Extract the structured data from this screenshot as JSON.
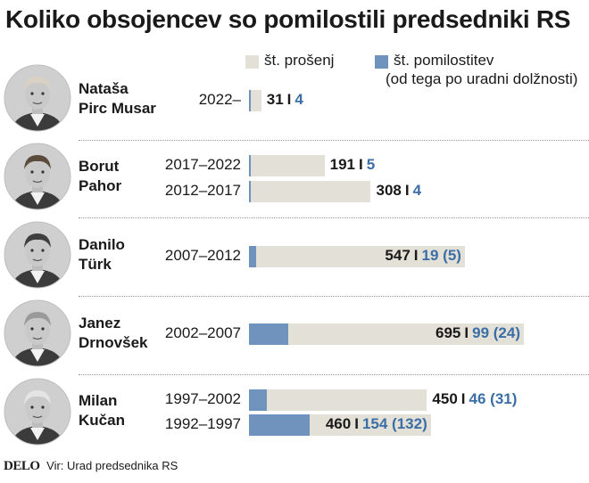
{
  "title": "Koliko obsojencev so pomilostili predsedniki RS",
  "legend": {
    "requests_label": "št. prošenj",
    "pardons_label": "št. pomilostitev",
    "pardons_sublabel": "(od tega po uradni dolžnosti)"
  },
  "colors": {
    "requests": "#e3e0d8",
    "pardons": "#6f93bd",
    "value_blue": "#3a6ea5"
  },
  "chart_data": {
    "type": "bar",
    "orientation": "horizontal",
    "xlim": [
      0,
      695
    ],
    "groups": [
      {
        "name_line1": "Nataša",
        "name_line2": "Pirc Musar",
        "terms": [
          {
            "period": "2022–",
            "requests": 31,
            "pardons": 4,
            "ex_officio": null
          }
        ]
      },
      {
        "name_line1": "Borut",
        "name_line2": "Pahor",
        "terms": [
          {
            "period": "2017–2022",
            "requests": 191,
            "pardons": 5,
            "ex_officio": null
          },
          {
            "period": "2012–2017",
            "requests": 308,
            "pardons": 4,
            "ex_officio": null
          }
        ]
      },
      {
        "name_line1": "Danilo",
        "name_line2": "Türk",
        "terms": [
          {
            "period": "2007–2012",
            "requests": 547,
            "pardons": 19,
            "ex_officio": 5
          }
        ]
      },
      {
        "name_line1": "Janez",
        "name_line2": "Drnovšek",
        "terms": [
          {
            "period": "2002–2007",
            "requests": 695,
            "pardons": 99,
            "ex_officio": 24
          }
        ]
      },
      {
        "name_line1": "Milan",
        "name_line2": "Kučan",
        "terms": [
          {
            "period": "1997–2002",
            "requests": 450,
            "pardons": 46,
            "ex_officio": 31
          },
          {
            "period": "1992–1997",
            "requests": 460,
            "pardons": 154,
            "ex_officio": 132
          }
        ]
      }
    ]
  },
  "footer": {
    "logo": "DELO",
    "source": "Vir: Urad predsednika RS"
  }
}
